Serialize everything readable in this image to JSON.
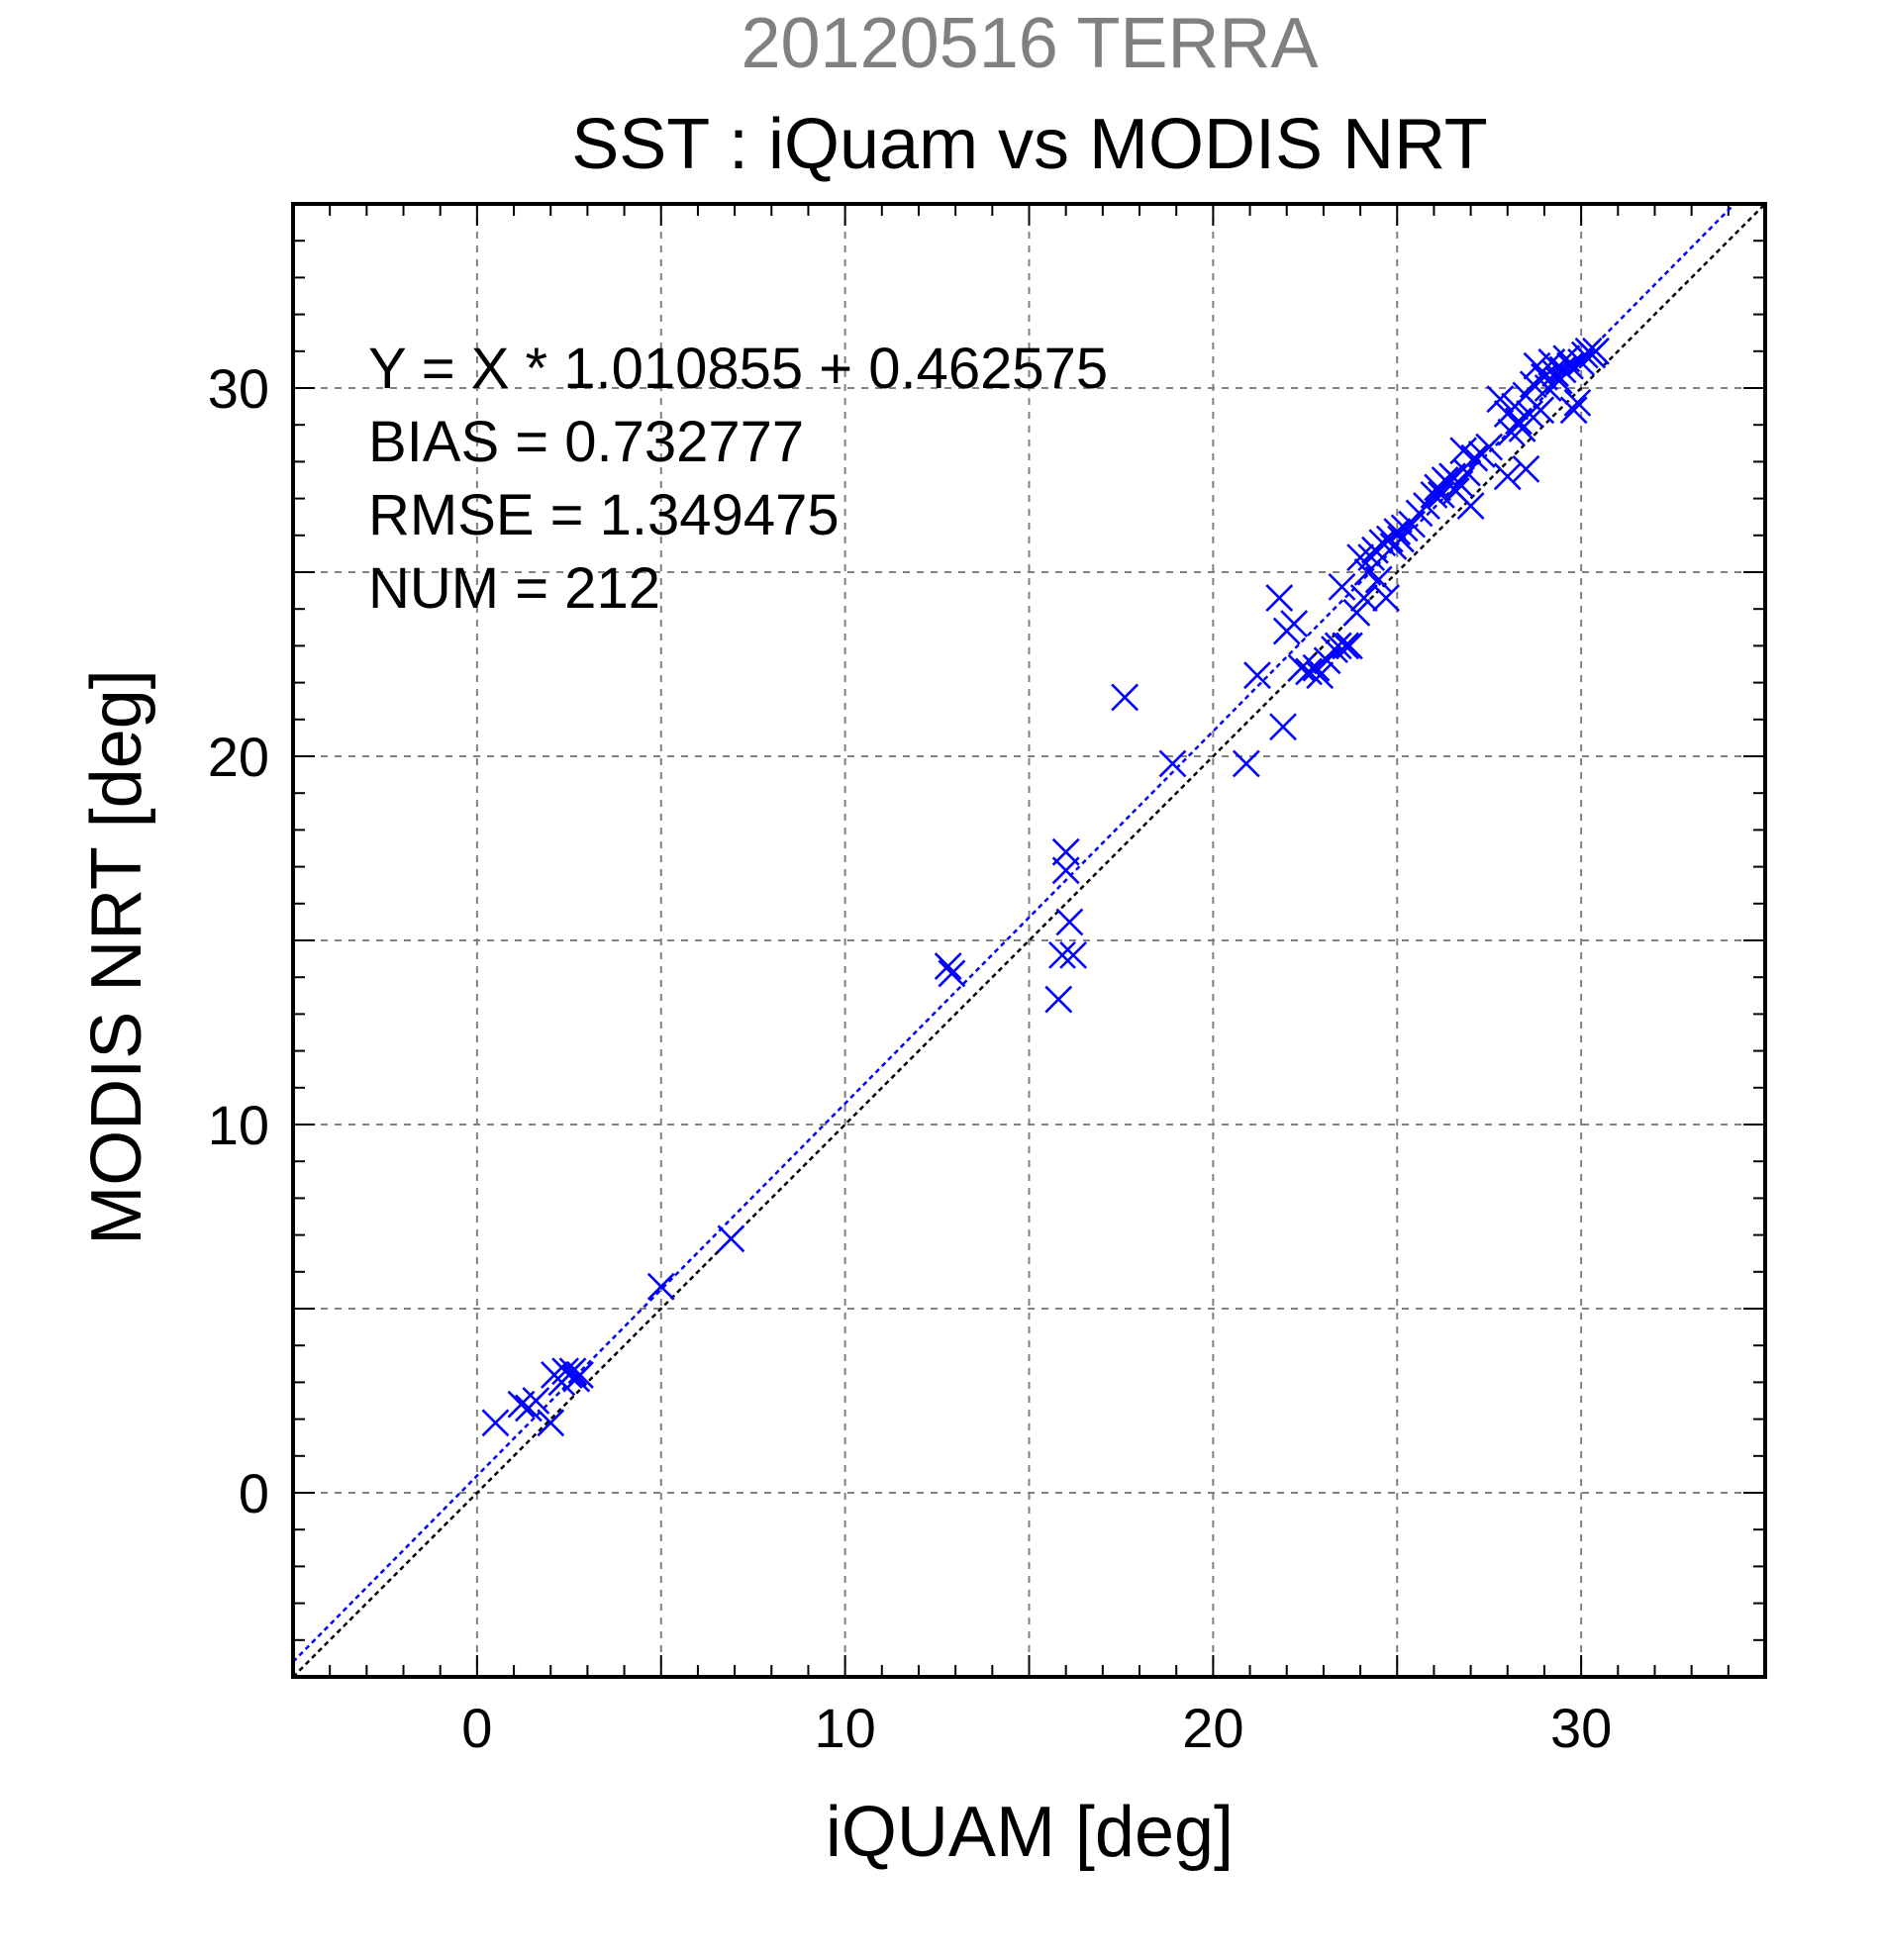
{
  "chart_data": {
    "type": "scatter",
    "title_top": "20120516 TERRA",
    "title": "SST : iQuam vs MODIS NRT",
    "xlabel": "iQUAM [deg]",
    "ylabel": "MODIS NRT [deg]",
    "xlim": [
      -5,
      35
    ],
    "ylim": [
      -5,
      35
    ],
    "x_ticks": [
      0,
      10,
      20,
      30
    ],
    "y_ticks": [
      0,
      10,
      20,
      30
    ],
    "x_tick_labels": [
      "0",
      "10",
      "20",
      "30"
    ],
    "y_tick_labels": [
      "0",
      "10",
      "20",
      "30"
    ],
    "grid": true,
    "grid_step": 5,
    "minor_tick_step": 1,
    "marker": "x",
    "marker_color": "#0000ff",
    "reference_line": {
      "slope": 1,
      "intercept": 0,
      "color": "#000000",
      "style": "dotted"
    },
    "fit_line": {
      "slope": 1.010855,
      "intercept": 0.462575,
      "color": "#0000ff",
      "style": "dotted"
    },
    "stats": [
      "Y = X * 1.010855 + 0.462575",
      "BIAS = 0.732777",
      "RMSE = 1.349475",
      "NUM = 212"
    ],
    "series": [
      {
        "points": [
          [
            0.5,
            1.9
          ],
          [
            1.2,
            2.4
          ],
          [
            1.4,
            2.3
          ],
          [
            1.6,
            2.5
          ],
          [
            2.0,
            1.9
          ],
          [
            2.1,
            3.2
          ],
          [
            2.3,
            3.0
          ],
          [
            2.4,
            3.3
          ],
          [
            2.5,
            3.2
          ],
          [
            2.6,
            3.3
          ],
          [
            2.7,
            3.1
          ],
          [
            2.8,
            3.2
          ],
          [
            5.0,
            5.6
          ],
          [
            6.9,
            6.9
          ],
          [
            12.8,
            14.3
          ],
          [
            12.9,
            14.1
          ],
          [
            15.8,
            13.4
          ],
          [
            15.9,
            14.6
          ],
          [
            16.0,
            17.4
          ],
          [
            16.0,
            16.9
          ],
          [
            16.1,
            15.5
          ],
          [
            16.2,
            14.6
          ],
          [
            17.6,
            21.6
          ],
          [
            18.9,
            19.8
          ],
          [
            20.9,
            19.8
          ],
          [
            21.2,
            22.2
          ],
          [
            21.8,
            24.3
          ],
          [
            21.9,
            20.8
          ],
          [
            22.0,
            23.4
          ],
          [
            22.2,
            23.6
          ],
          [
            22.4,
            22.4
          ],
          [
            22.6,
            22.3
          ],
          [
            22.8,
            22.4
          ],
          [
            22.9,
            22.2
          ],
          [
            23.1,
            22.6
          ],
          [
            23.3,
            22.9
          ],
          [
            23.4,
            23.0
          ],
          [
            23.5,
            24.6
          ],
          [
            23.6,
            23.0
          ],
          [
            23.7,
            23.0
          ],
          [
            23.9,
            23.9
          ],
          [
            24.0,
            25.4
          ],
          [
            24.1,
            24.3
          ],
          [
            24.2,
            25.0
          ],
          [
            24.3,
            25.4
          ],
          [
            24.4,
            25.6
          ],
          [
            24.5,
            24.8
          ],
          [
            24.6,
            25.8
          ],
          [
            24.7,
            24.3
          ],
          [
            24.8,
            25.9
          ],
          [
            24.9,
            25.7
          ],
          [
            25.0,
            26.1
          ],
          [
            25.1,
            25.9
          ],
          [
            25.2,
            26.2
          ],
          [
            25.4,
            26.3
          ],
          [
            25.6,
            26.6
          ],
          [
            25.8,
            26.8
          ],
          [
            26.0,
            27.1
          ],
          [
            26.1,
            27.3
          ],
          [
            26.2,
            27.1
          ],
          [
            26.3,
            27.5
          ],
          [
            26.4,
            27.4
          ],
          [
            26.5,
            27.6
          ],
          [
            26.6,
            27.2
          ],
          [
            26.7,
            27.4
          ],
          [
            26.8,
            28.3
          ],
          [
            26.9,
            27.7
          ],
          [
            27.0,
            26.8
          ],
          [
            27.1,
            28.1
          ],
          [
            27.3,
            28.2
          ],
          [
            27.5,
            28.4
          ],
          [
            27.8,
            29.7
          ],
          [
            28.0,
            29.3
          ],
          [
            28.0,
            27.6
          ],
          [
            28.1,
            28.8
          ],
          [
            28.2,
            29.5
          ],
          [
            28.3,
            29.1
          ],
          [
            28.4,
            28.9
          ],
          [
            28.5,
            29.8
          ],
          [
            28.5,
            27.8
          ],
          [
            28.6,
            29.3
          ],
          [
            28.7,
            30.1
          ],
          [
            28.8,
            30.6
          ],
          [
            28.9,
            29.4
          ],
          [
            29.0,
            30.3
          ],
          [
            29.1,
            30.0
          ],
          [
            29.2,
            30.7
          ],
          [
            29.3,
            30.4
          ],
          [
            29.4,
            30.2
          ],
          [
            29.5,
            30.5
          ],
          [
            29.6,
            30.8
          ],
          [
            29.7,
            30.6
          ],
          [
            29.8,
            29.4
          ],
          [
            29.9,
            29.6
          ],
          [
            30.0,
            30.7
          ],
          [
            30.1,
            30.9
          ],
          [
            30.2,
            31.0
          ],
          [
            30.3,
            30.9
          ],
          [
            30.4,
            31.0
          ]
        ]
      }
    ]
  }
}
